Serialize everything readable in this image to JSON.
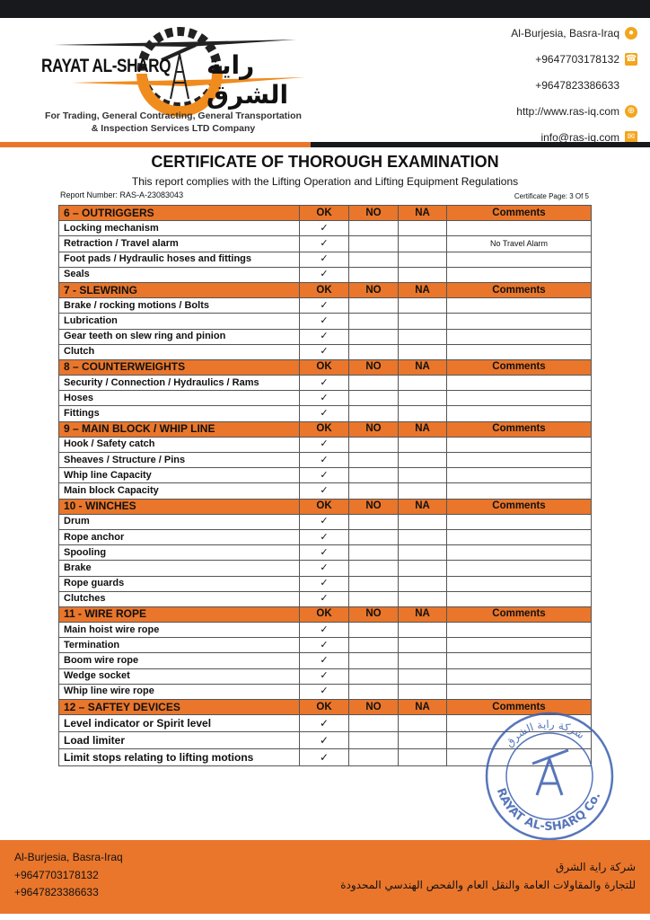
{
  "header": {
    "logo_en": "RAYAT AL-SHARQ",
    "logo_ar": "راية الشرق",
    "tagline_1": "For Trading, General Contracting, General Transportation",
    "tagline_2": "& Inspection Services LTD Company",
    "contacts": [
      {
        "text": "Al-Burjesia, Basra-Iraq",
        "icon": "location-pin-icon"
      },
      {
        "text": "+9647703178132",
        "icon": "phone-icon"
      },
      {
        "text": "+9647823386633",
        "icon": ""
      },
      {
        "text": "http://www.ras-iq.com",
        "icon": "globe-icon"
      },
      {
        "text": "info@ras-iq.com",
        "icon": "mail-icon"
      }
    ]
  },
  "doc": {
    "title": "CERTIFICATE OF THOROUGH EXAMINATION",
    "subtitle": "This report complies with the Lifting Operation and Lifting Equipment Regulations",
    "report_number": "Report Number: RAS-A-23083043",
    "page": "Certificate Page: 3 Of 5"
  },
  "cols": {
    "ok": "OK",
    "no": "NO",
    "na": "NA",
    "comments": "Comments"
  },
  "check": "✓",
  "sections": [
    {
      "title": "6 – OUTRIGGERS",
      "items": [
        {
          "label": "Locking mechanism",
          "c": ""
        },
        {
          "label": "Retraction / Travel alarm",
          "c": "No Travel Alarm"
        },
        {
          "label": "Foot pads / Hydraulic hoses and fittings",
          "c": ""
        },
        {
          "label": "Seals",
          "c": ""
        }
      ]
    },
    {
      "title": "7 - SLEWRING",
      "items": [
        {
          "label": "Brake / rocking motions / Bolts",
          "c": ""
        },
        {
          "label": "Lubrication",
          "c": ""
        },
        {
          "label": "Gear teeth on slew ring and pinion",
          "c": ""
        },
        {
          "label": "Clutch",
          "c": ""
        }
      ]
    },
    {
      "title": "8 – COUNTERWEIGHTS",
      "items": [
        {
          "label": "Security / Connection / Hydraulics / Rams",
          "c": ""
        },
        {
          "label": "Hoses",
          "c": ""
        },
        {
          "label": "Fittings",
          "c": ""
        }
      ]
    },
    {
      "title": "9 – MAIN BLOCK / WHIP LINE",
      "items": [
        {
          "label": "Hook /  Safety catch",
          "c": ""
        },
        {
          "label": "Sheaves / Structure / Pins",
          "c": ""
        },
        {
          "label": "Whip line Capacity",
          "c": ""
        },
        {
          "label": "Main block Capacity",
          "c": ""
        }
      ]
    },
    {
      "title": "10 - WINCHES",
      "items": [
        {
          "label": "Drum",
          "c": ""
        },
        {
          "label": "Rope anchor",
          "c": ""
        },
        {
          "label": "Spooling",
          "c": ""
        },
        {
          "label": "Brake",
          "c": ""
        },
        {
          "label": "Rope guards",
          "c": ""
        },
        {
          "label": "Clutches",
          "c": ""
        }
      ]
    },
    {
      "title": "11 - WIRE ROPE",
      "items": [
        {
          "label": "Main hoist wire rope",
          "c": ""
        },
        {
          "label": "Termination",
          "c": ""
        },
        {
          "label": "Boom wire rope",
          "c": ""
        },
        {
          "label": "Wedge socket",
          "c": ""
        },
        {
          "label": "Whip line wire rope",
          "c": ""
        }
      ]
    },
    {
      "title": "12 – SAFTEY DEVICES",
      "items": [
        {
          "label": "Level indicator or Spirit level",
          "c": ""
        },
        {
          "label": "Load limiter",
          "c": ""
        },
        {
          "label": "Limit stops relating to lifting motions",
          "c": ""
        }
      ]
    }
  ],
  "stamp": {
    "text_ar": "شركة راية الشرق",
    "text_en": "RAYAT AL-SHARQ Co."
  },
  "footer": {
    "address": "Al-Burjesia, Basra-Iraq",
    "phone1": "+9647703178132",
    "phone2": "+9647823386633",
    "ar_1": "شركة راية الشرق",
    "ar_2": "للتجارة والمقاولات العامة والنقل العام والفحص الهندسي المحدودة"
  },
  "colors": {
    "accent": "#e9762b",
    "dark": "#17191c",
    "stamp": "#3a5fb0"
  }
}
